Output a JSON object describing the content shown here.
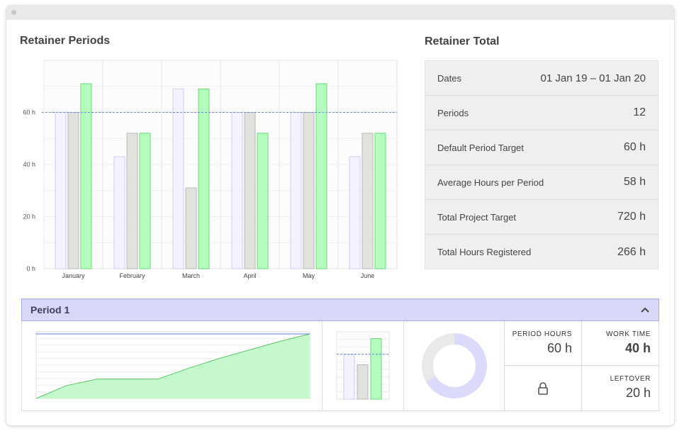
{
  "page": {
    "title": "Retainer Periods",
    "totals_title": "Retainer Total"
  },
  "colors": {
    "planned": "#f3f2fe",
    "target": "#e1e2de",
    "registered": "#b5fdbf",
    "accent": "#6d8be0",
    "period_header": "#d9d7f8"
  },
  "chart_data": {
    "type": "bar",
    "categories": [
      "January",
      "February",
      "March",
      "April",
      "May",
      "June"
    ],
    "series": [
      {
        "values": [
          60,
          43,
          69,
          60,
          60,
          43
        ]
      },
      {
        "values": [
          60,
          52,
          31,
          60,
          60,
          52
        ]
      },
      {
        "values": [
          71,
          52,
          69,
          52,
          71,
          52
        ]
      }
    ],
    "target_line": 60,
    "y_ticks": [
      0,
      20,
      40,
      60
    ],
    "y_tick_labels": [
      "0 h",
      "20 h",
      "40 h",
      "60 h"
    ],
    "ylim": [
      0,
      80
    ],
    "grid": true
  },
  "totals": {
    "rows": [
      {
        "label": "Dates",
        "value": "01 Jan 19  –  01 Jan 20"
      },
      {
        "label": "Periods",
        "value": "12"
      },
      {
        "label": "Default Period Target",
        "value": "60 h"
      },
      {
        "label": "Average Hours per Period",
        "value": "58 h"
      },
      {
        "label": "Total Project Target",
        "value": "720 h"
      },
      {
        "label": "Total Hours Registered",
        "value": "266 h"
      }
    ]
  },
  "period": {
    "title": "Period 1",
    "cumulative_chart": {
      "target": 60,
      "ymax": 62,
      "values": [
        0,
        12,
        18,
        18,
        18,
        28,
        37,
        45,
        53,
        60
      ]
    },
    "mini_bars": {
      "target": 60,
      "values": [
        60,
        46,
        81
      ]
    },
    "donut_fraction": 0.667,
    "stats": {
      "period_hours_label": "PERIOD HOURS",
      "period_hours": "60 h",
      "work_time_label": "WORK TIME",
      "work_time": "40 h",
      "leftover_label": "LEFTOVER",
      "leftover": "20 h"
    }
  }
}
